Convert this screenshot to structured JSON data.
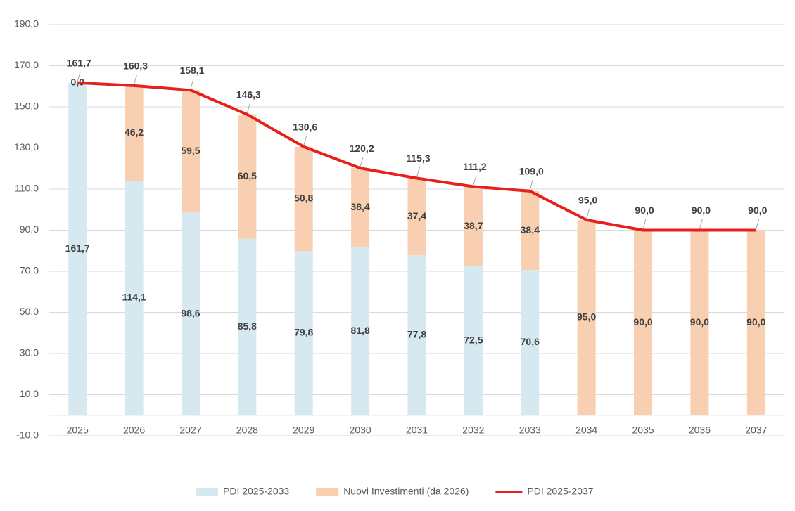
{
  "chart_data": {
    "type": "bar_line",
    "categories": [
      "2025",
      "2026",
      "2027",
      "2028",
      "2029",
      "2030",
      "2031",
      "2032",
      "2033",
      "2034",
      "2035",
      "2036",
      "2037"
    ],
    "series": [
      {
        "name": "PDI 2025-2033",
        "type": "bar",
        "color": "#d6e9f0",
        "values": [
          161.7,
          114.1,
          98.6,
          85.8,
          79.8,
          81.8,
          77.8,
          72.5,
          70.6,
          null,
          null,
          null,
          null
        ],
        "value_labels": [
          "161,7",
          "114,1",
          "98,6",
          "85,8",
          "79,8",
          "81,8",
          "77,8",
          "72,5",
          "70,6",
          null,
          null,
          null,
          null
        ]
      },
      {
        "name": "Nuovi Investimenti (da 2026)",
        "type": "bar",
        "color": "#f9cfb2",
        "values": [
          0.0,
          46.2,
          59.5,
          60.5,
          50.8,
          38.4,
          37.4,
          38.7,
          38.4,
          95.0,
          90.0,
          90.0,
          90.0
        ],
        "value_labels": [
          "0,0",
          "46,2",
          "59,5",
          "60,5",
          "50,8",
          "38,4",
          "37,4",
          "38,7",
          "38,4",
          "95,0",
          "90,0",
          "90,0",
          "90,0"
        ]
      },
      {
        "name": "PDI 2025-2037",
        "type": "line",
        "color": "#e8201c",
        "values": [
          161.7,
          160.3,
          158.1,
          146.3,
          130.6,
          120.2,
          115.3,
          111.2,
          109.0,
          95.0,
          90.0,
          90.0,
          90.0
        ],
        "value_labels": [
          "161,7",
          "160,3",
          "158,1",
          "146,3",
          "130,6",
          "120,2",
          "115,3",
          "111,2",
          "109,0",
          "95,0",
          "90,0",
          "90,0",
          "90,0"
        ]
      }
    ],
    "ylim": [
      -10,
      190
    ],
    "yticks": [
      {
        "value": -10,
        "label": "-10,0"
      },
      {
        "value": 10,
        "label": "10,0"
      },
      {
        "value": 30,
        "label": "30,0"
      },
      {
        "value": 50,
        "label": "50,0"
      },
      {
        "value": 70,
        "label": "70,0"
      },
      {
        "value": 90,
        "label": "90,0"
      },
      {
        "value": 110,
        "label": "110,0"
      },
      {
        "value": 130,
        "label": "130,0"
      },
      {
        "value": 150,
        "label": "150,0"
      },
      {
        "value": 170,
        "label": "170,0"
      },
      {
        "value": 190,
        "label": "190,0"
      }
    ],
    "grid": true,
    "legend": "bottom"
  }
}
